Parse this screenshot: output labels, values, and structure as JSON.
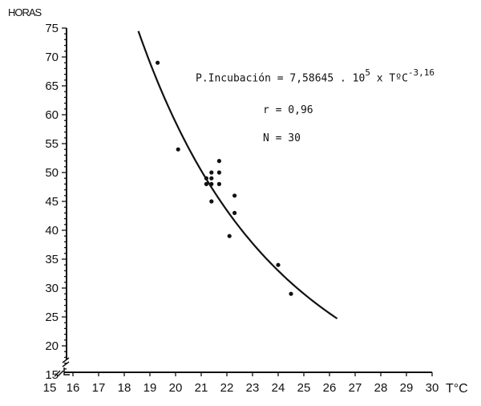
{
  "chart_data": {
    "type": "scatter",
    "title": "",
    "xlabel": "T°C",
    "ylabel": "HORAS",
    "xlim": [
      15,
      30
    ],
    "ylim": [
      15,
      75
    ],
    "x_ticks": [
      15,
      16,
      17,
      18,
      19,
      20,
      21,
      22,
      23,
      24,
      25,
      26,
      27,
      28,
      29,
      30
    ],
    "y_ticks": [
      15,
      20,
      25,
      30,
      35,
      40,
      45,
      50,
      55,
      60,
      65,
      70,
      75
    ],
    "grid": false,
    "axis_breaks": [
      "x near 15",
      "y near 15"
    ],
    "series": [
      {
        "name": "observations",
        "kind": "scatter",
        "points": [
          {
            "x": 19.3,
            "y": 69
          },
          {
            "x": 20.1,
            "y": 54
          },
          {
            "x": 21.2,
            "y": 49
          },
          {
            "x": 21.4,
            "y": 49
          },
          {
            "x": 21.2,
            "y": 48
          },
          {
            "x": 21.4,
            "y": 48
          },
          {
            "x": 21.4,
            "y": 50
          },
          {
            "x": 21.7,
            "y": 52
          },
          {
            "x": 21.7,
            "y": 50
          },
          {
            "x": 21.7,
            "y": 48
          },
          {
            "x": 21.4,
            "y": 45
          },
          {
            "x": 22.3,
            "y": 46
          },
          {
            "x": 22.3,
            "y": 43
          },
          {
            "x": 22.1,
            "y": 39
          },
          {
            "x": 24.0,
            "y": 34
          },
          {
            "x": 24.5,
            "y": 29
          }
        ]
      },
      {
        "name": "fitted curve",
        "kind": "line",
        "equation": "P.Incubación = 7,58645 . 10^5 x T°C^-3,16",
        "x_range": [
          18.55,
          26.3
        ]
      }
    ],
    "annotations": {
      "equation_prefix": "P.Incubación = 7,58645 . 10",
      "equation_exp1": "5",
      "equation_mid": " x T",
      "equation_deg": "º",
      "equation_unit": "C",
      "equation_exp2": "-3,16",
      "r": "r = 0,96",
      "n": "N = 30"
    }
  }
}
